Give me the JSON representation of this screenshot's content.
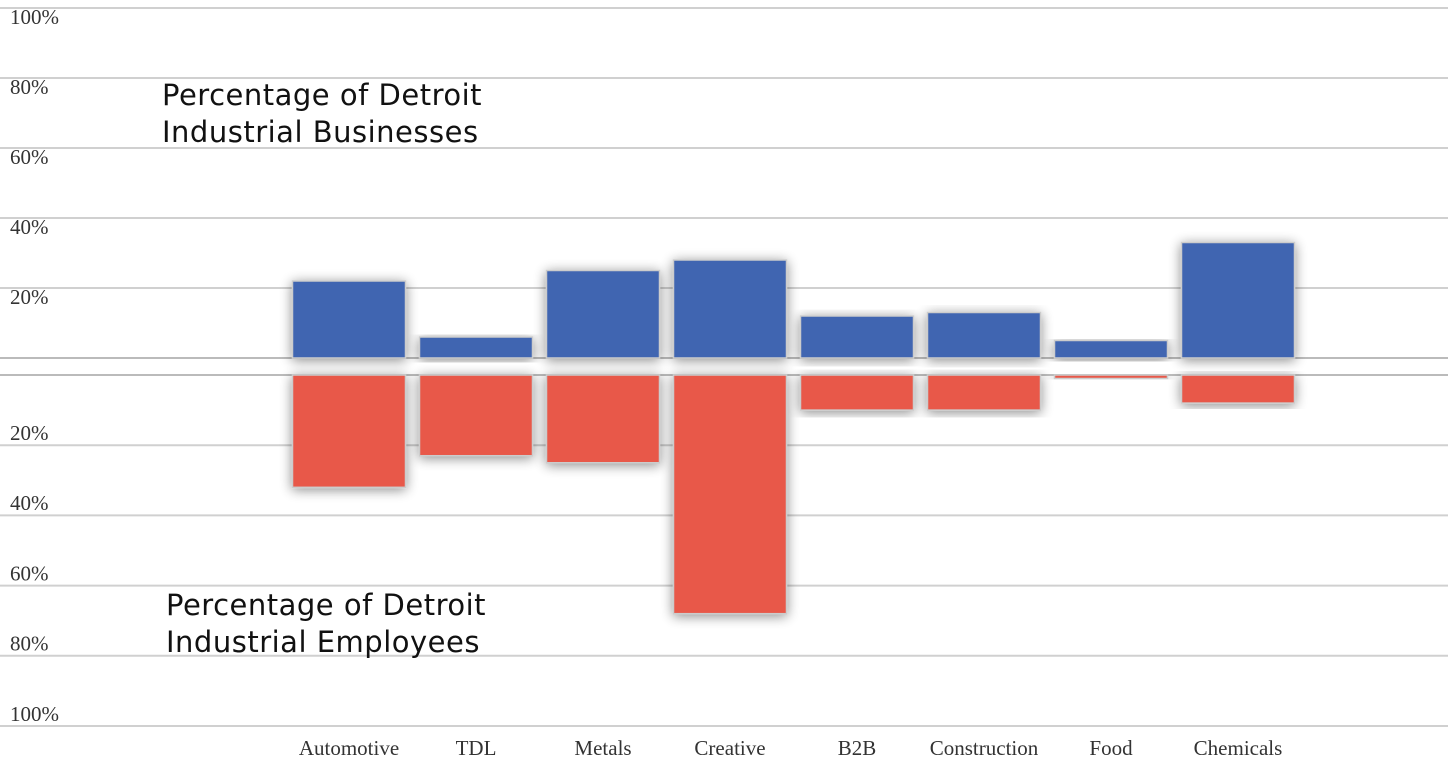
{
  "chart_data": {
    "type": "mirrored_bar",
    "categories": [
      "Automotive",
      "TDL",
      "Metals",
      "Creative",
      "B2B",
      "Construction",
      "Food",
      "Chemicals"
    ],
    "series": [
      {
        "name": "Percentage of Detroit Industrial Businesses",
        "color": "#3f65b1",
        "values": [
          22,
          6,
          25,
          28,
          12,
          13,
          5,
          33
        ]
      },
      {
        "name": "Percentage of Detroit Industrial Employees",
        "color": "#e8584a",
        "values": [
          32,
          23,
          25,
          68,
          10,
          10,
          1,
          8
        ],
        "axis": "y2"
      }
    ],
    "ylim": [
      0,
      100
    ],
    "yticks": [
      {
        "value": 20,
        "label": "20%"
      },
      {
        "value": 40,
        "label": "40%"
      },
      {
        "value": 60,
        "label": "60%"
      },
      {
        "value": 80,
        "label": "80%"
      },
      {
        "value": 100,
        "label": "100%"
      }
    ],
    "y2lim": [
      0,
      100
    ],
    "y2ticks": [
      {
        "value": 20,
        "label": "20%"
      },
      {
        "value": 40,
        "label": "40%"
      },
      {
        "value": 60,
        "label": "60%"
      },
      {
        "value": 80,
        "label": "80%"
      },
      {
        "value": 100,
        "label": "100%"
      }
    ],
    "y2_inverted": true,
    "grid": true
  }
}
